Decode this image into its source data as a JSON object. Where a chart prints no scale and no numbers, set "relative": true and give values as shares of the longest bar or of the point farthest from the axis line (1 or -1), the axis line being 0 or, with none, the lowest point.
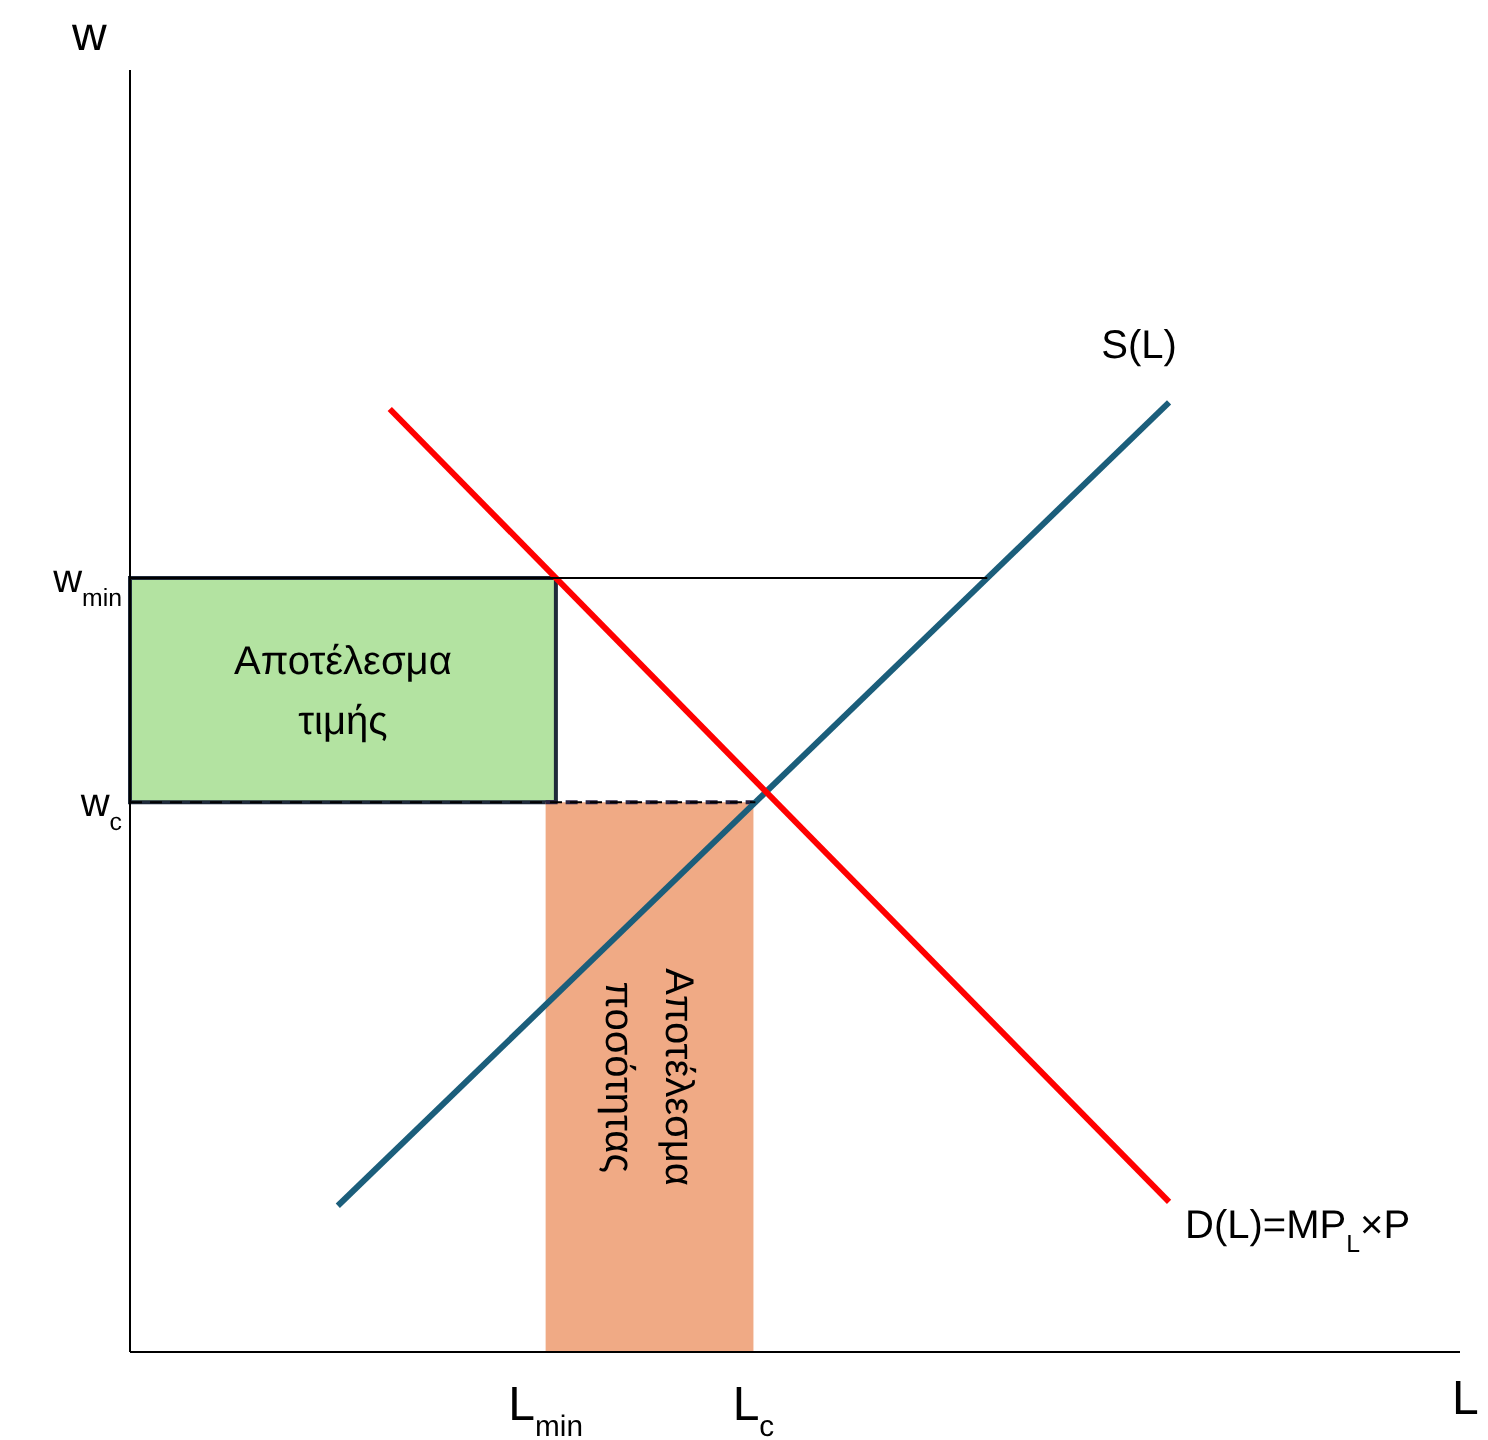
{
  "chart_data": {
    "type": "line",
    "xlabel": "L",
    "annotations": [
      "w"
    ],
    "relative": true,
    "categories": [
      null,
      null,
      null,
      null,
      null,
      null,
      null,
      null,
      "L$_{min}$",
      null,
      null,
      null,
      "L$_{c}$",
      null,
      null,
      null,
      null,
      null,
      null,
      null,
      null,
      null,
      null,
      null,
      null,
      null
    ],
    "series": [
      {
        "name": "S(L)",
        "color": "#1b5e7b",
        "values": [
          null,
          null,
          null,
          null,
          0.154,
          null,
          null,
          null,
          null,
          null,
          null,
          null,
          null,
          null,
          null,
          null,
          null,
          null,
          null,
          null,
          1,
          null,
          null,
          null,
          null,
          null
        ]
      },
      {
        "name": "D(L)=MP$_{L}$×P",
        "color": "#ff0000",
        "values": [
          null,
          null,
          null,
          null,
          null,
          0.993,
          null,
          null,
          null,
          null,
          null,
          null,
          null,
          null,
          null,
          null,
          null,
          null,
          null,
          null,
          0.158,
          null,
          null,
          null,
          null,
          null
        ]
      },
      {
        "type": "area",
        "name": "Αποτέλεσμα ποσότητας",
        "color": "#f0aa85",
        "line_style": "dashed",
        "values": [
          null,
          null,
          null,
          null,
          null,
          null,
          null,
          null,
          0.579,
          null,
          null,
          null,
          0.579,
          null,
          null,
          null,
          null,
          null,
          null,
          null,
          null,
          null,
          null,
          null,
          null,
          null
        ]
      }
    ],
    "bands": [
      {
        "axis": "y",
        "from": 0.579,
        "to": 0.815,
        "label": "Αποτέλεσμα τιμής",
        "color": "#b3e3a1"
      }
    ],
    "ref_lines": [
      {
        "axis": "y",
        "value": 0.815,
        "label": "w$_{min}$",
        "color": "#000000"
      },
      {
        "axis": "y",
        "value": 0.579,
        "label": "w$_{c}$",
        "color": "#000000",
        "line_style": "dashed"
      }
    ]
  }
}
